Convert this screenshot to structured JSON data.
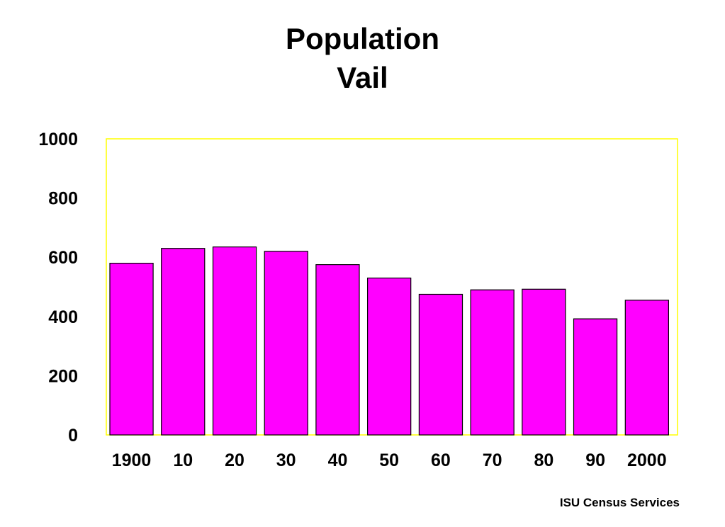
{
  "chart_data": {
    "type": "bar",
    "title": [
      "Population",
      "Vail"
    ],
    "categories": [
      "1900",
      "10",
      "20",
      "30",
      "40",
      "50",
      "60",
      "70",
      "80",
      "90",
      "2000"
    ],
    "values": [
      580,
      630,
      635,
      620,
      575,
      530,
      475,
      490,
      492,
      392,
      455
    ],
    "ylim": [
      0,
      1000
    ],
    "yticks": [
      0,
      200,
      400,
      600,
      800,
      1000
    ],
    "grid": false,
    "colors": {
      "bar_fill": "#ff00ff",
      "bar_stroke": "#000000",
      "plot_border": "#ffff00"
    }
  },
  "footer": "ISU Census Services"
}
